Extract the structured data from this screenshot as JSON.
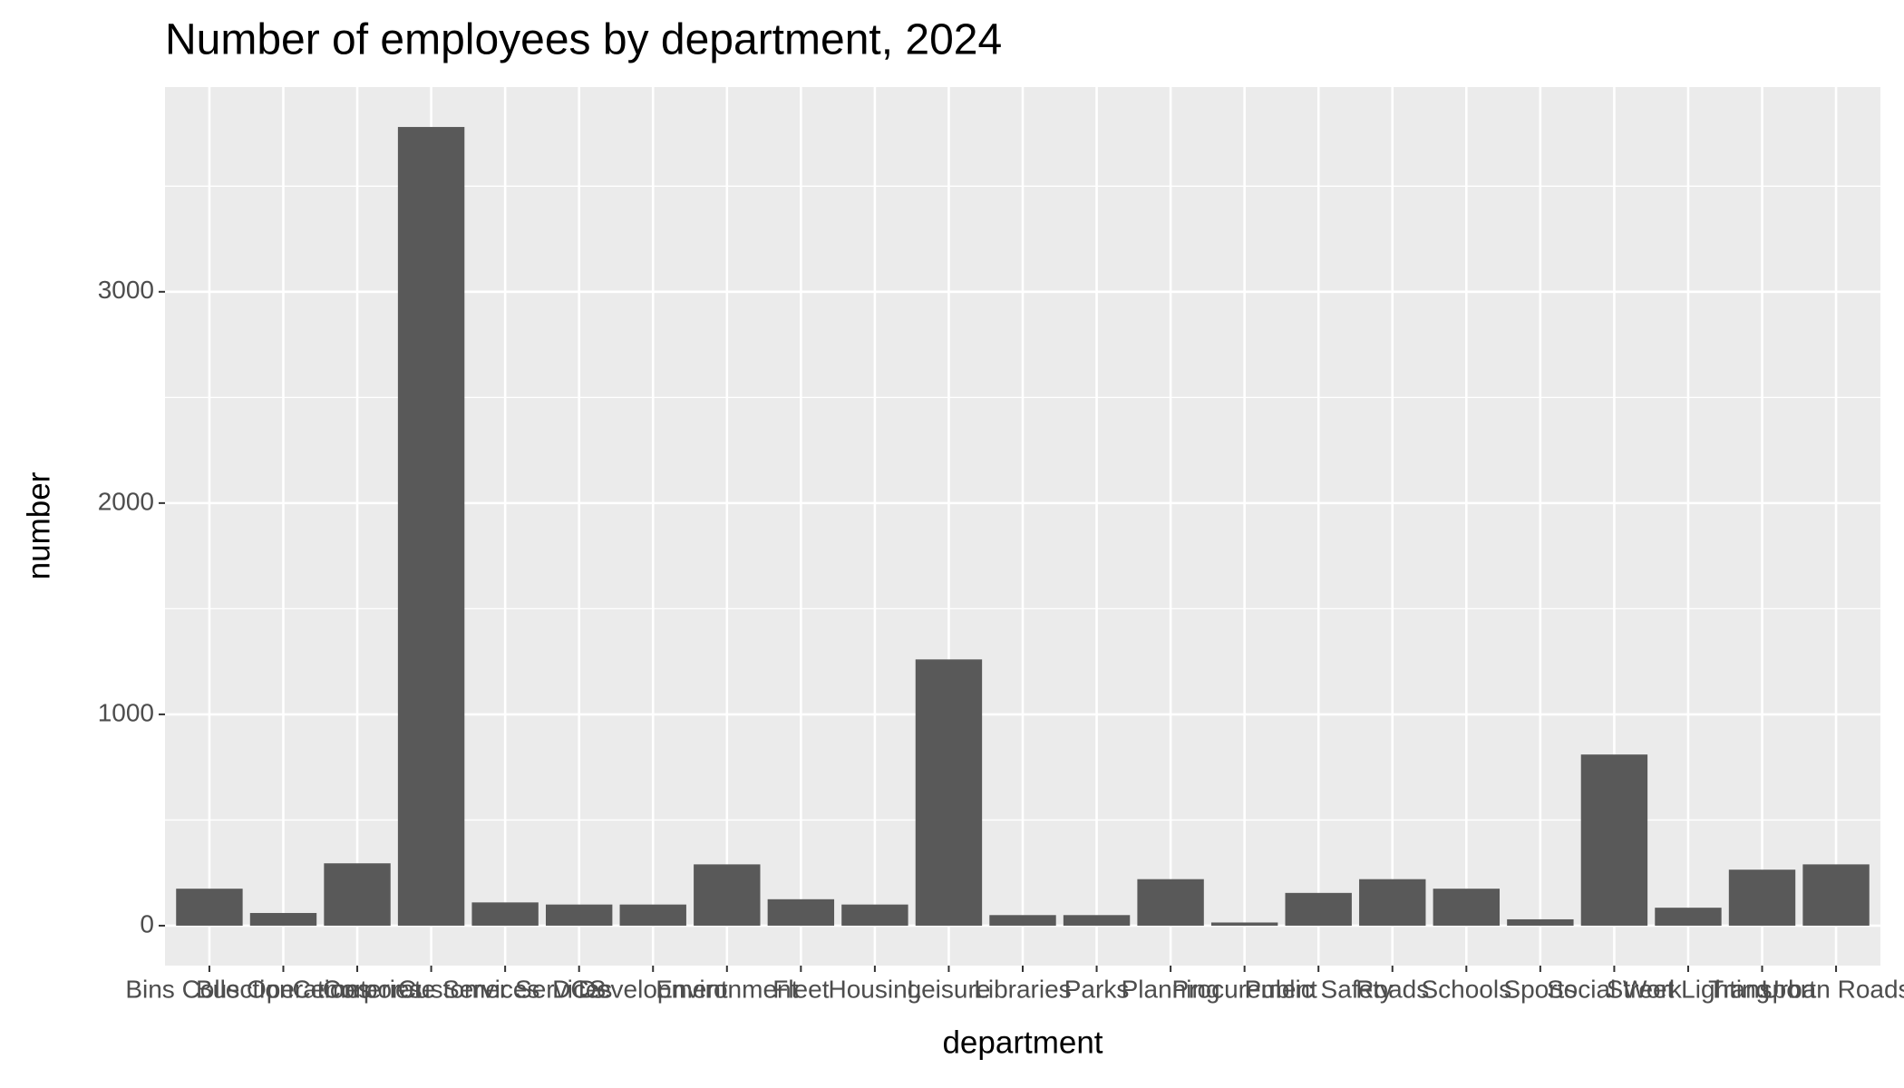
{
  "chart_data": {
    "type": "bar",
    "title": "Number of employees by department, 2024",
    "x_label": "department",
    "y_label": "number",
    "categories": [
      "Bins Collection",
      "Bus Operations",
      "Cemeteries",
      "Corporate Services",
      "Customer Services",
      "DCS",
      "Development",
      "Environment",
      "Fleet",
      "Housing",
      "Leisure",
      "Libraries",
      "Parks",
      "Planning",
      "Procurement",
      "Public Safety",
      "Roads",
      "Schools",
      "Sports",
      "Social Work",
      "Street Lighting",
      "Transport",
      "Urban Roads"
    ],
    "values": [
      175,
      60,
      295,
      3780,
      110,
      100,
      100,
      290,
      125,
      100,
      1260,
      50,
      50,
      220,
      15,
      155,
      220,
      175,
      30,
      810,
      85,
      265,
      290
    ],
    "color": "#595959",
    "ylim": [
      -189,
      3969
    ],
    "yticks": [
      0,
      1000,
      2000,
      3000
    ],
    "grid": true
  }
}
